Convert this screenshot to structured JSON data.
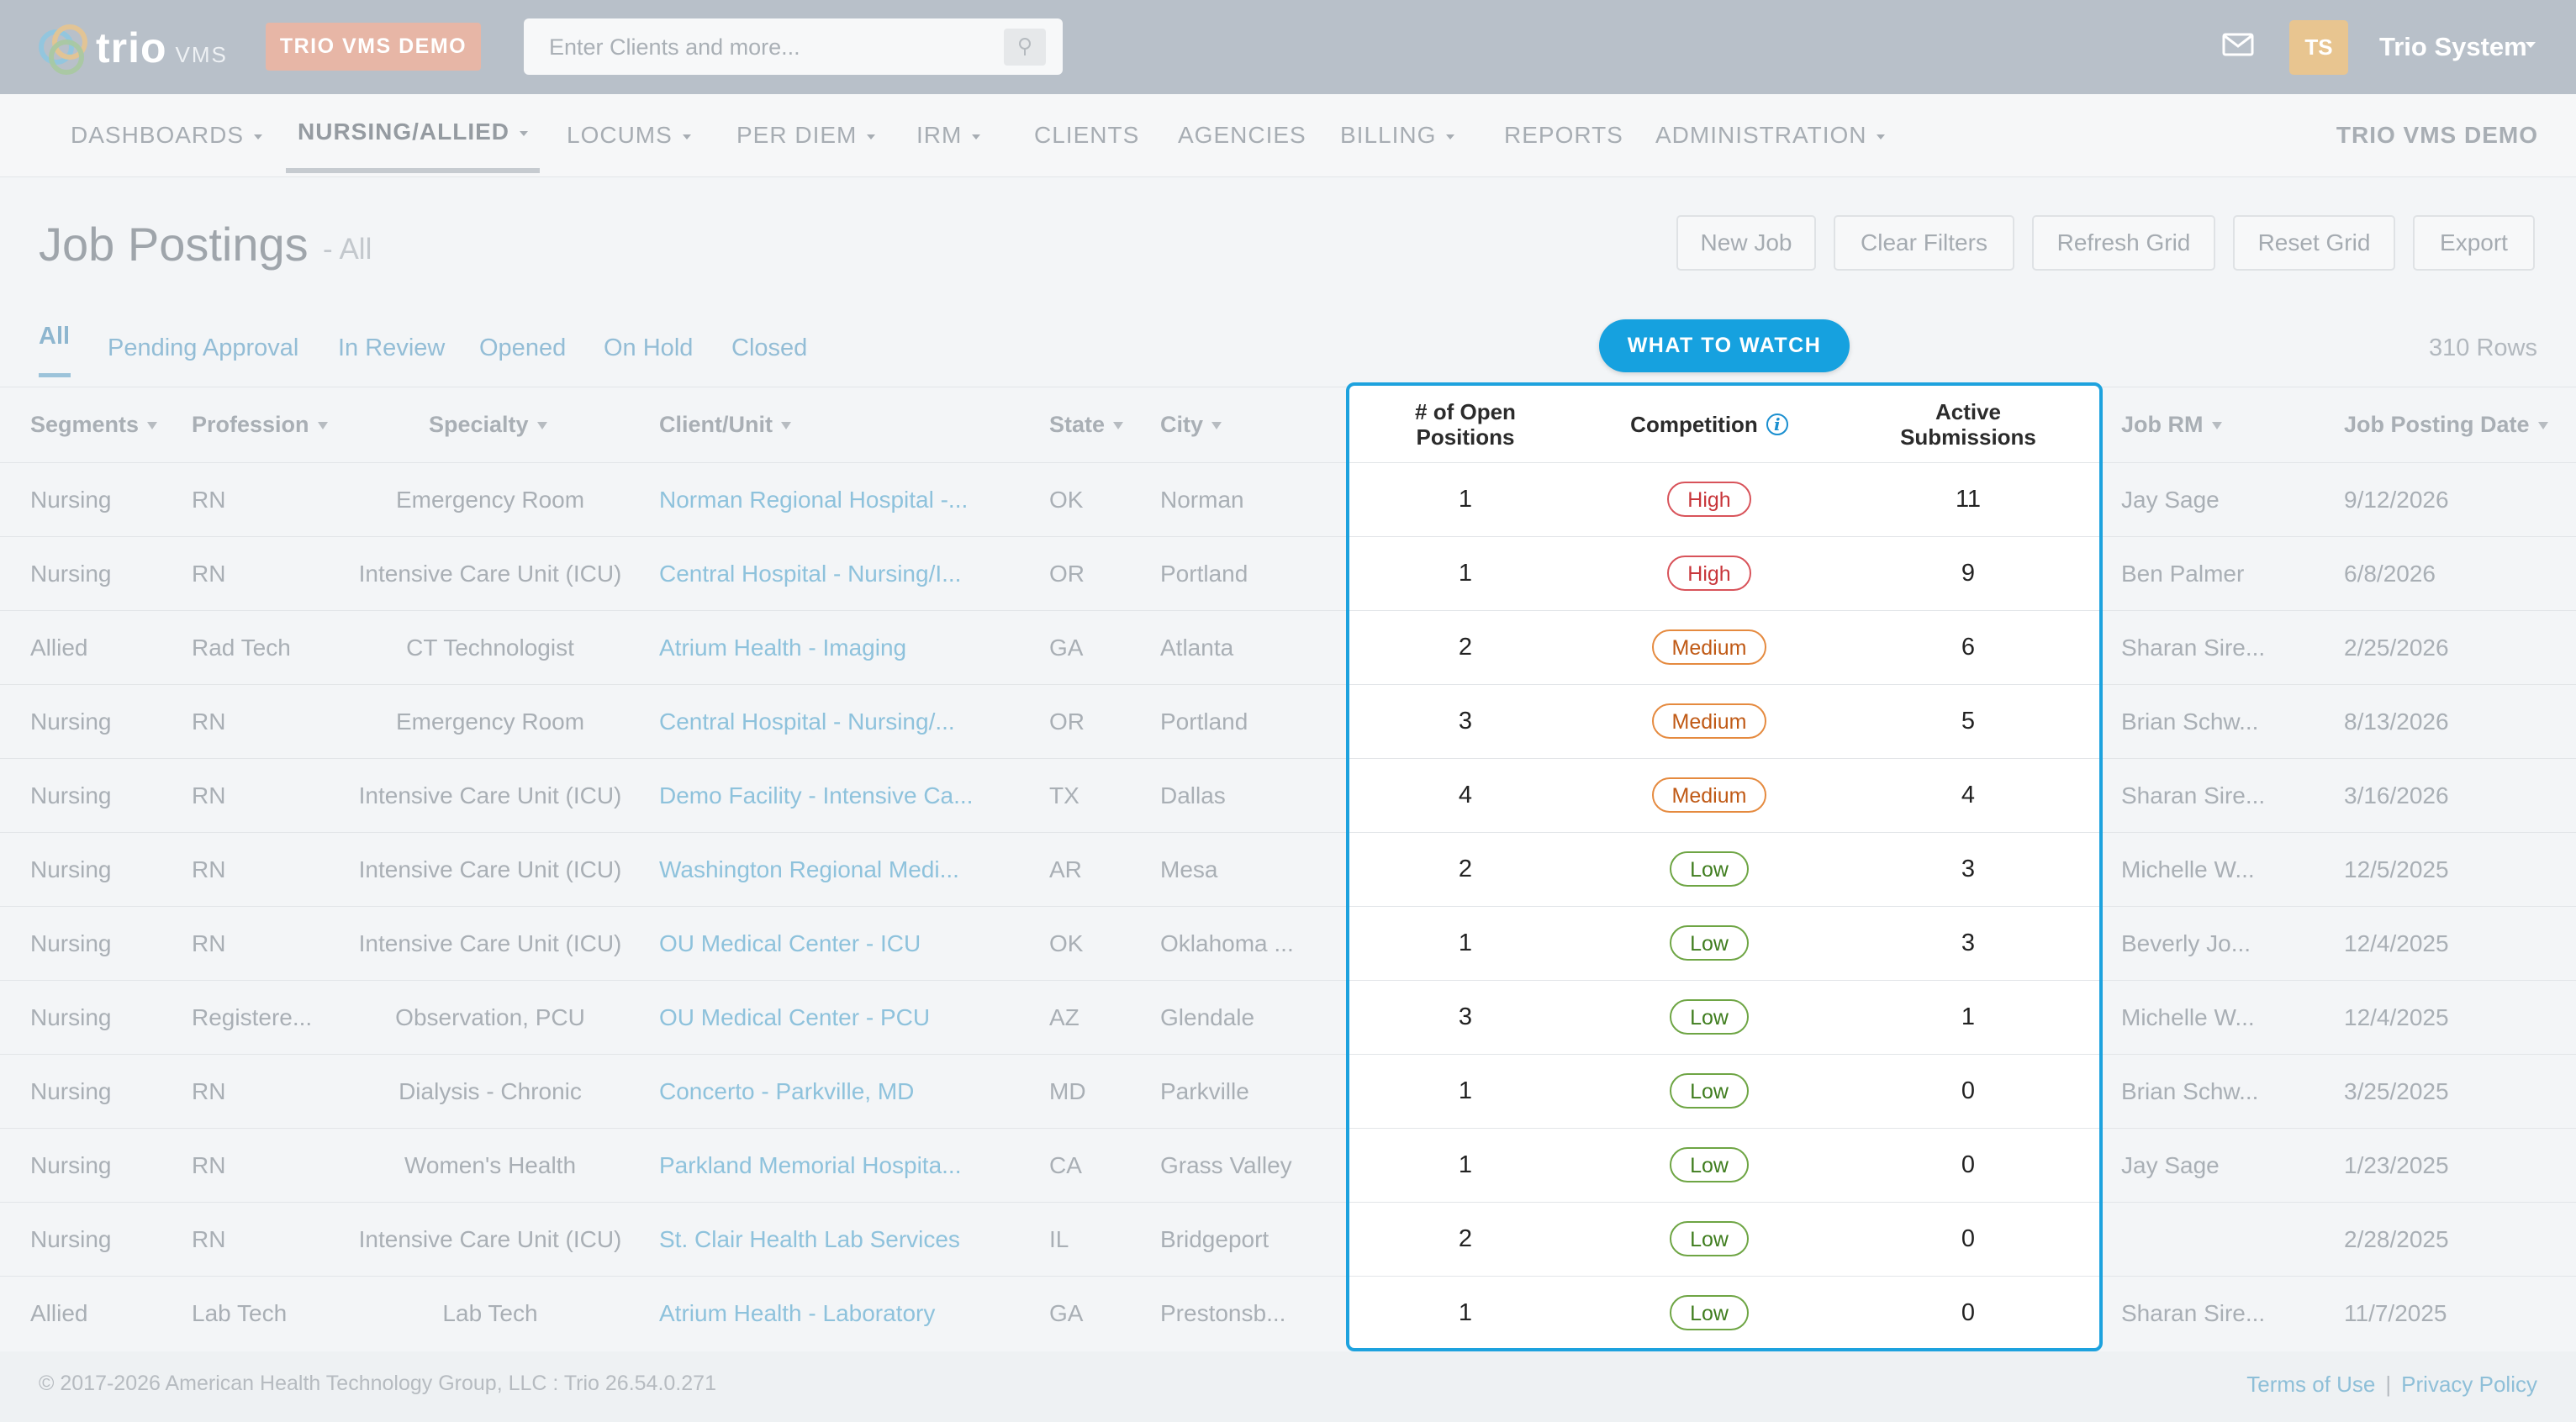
{
  "header": {
    "logo_text": "trio",
    "logo_sub": "VMS",
    "demo_badge": "TRIO VMS DEMO",
    "search_placeholder": "Enter Clients and more...",
    "avatar_initials": "TS",
    "user_name": "Trio System"
  },
  "nav": {
    "items": [
      {
        "label": "DASHBOARDS",
        "caret": true
      },
      {
        "label": "NURSING/ALLIED",
        "caret": true,
        "active": true
      },
      {
        "label": "LOCUMS",
        "caret": true
      },
      {
        "label": "PER DIEM",
        "caret": true
      },
      {
        "label": "IRM",
        "caret": true
      },
      {
        "label": "CLIENTS",
        "caret": false
      },
      {
        "label": "AGENCIES",
        "caret": false
      },
      {
        "label": "BILLING",
        "caret": true
      },
      {
        "label": "REPORTS",
        "caret": false
      },
      {
        "label": "ADMINISTRATION",
        "caret": true
      }
    ],
    "right_label": "TRIO VMS DEMO"
  },
  "page": {
    "title": "Job Postings",
    "subtitle": "- All",
    "buttons": [
      "New Job",
      "Clear Filters",
      "Refresh Grid",
      "Reset Grid",
      "Export"
    ]
  },
  "tabs": [
    "All",
    "Pending Approval",
    "In Review",
    "Opened",
    "On Hold",
    "Closed"
  ],
  "what_to_watch": "WHAT TO WATCH",
  "row_count": "310 Rows",
  "columns": {
    "segments": "Segments",
    "profession": "Profession",
    "specialty": "Specialty",
    "client_unit": "Client/Unit",
    "state": "State",
    "city": "City",
    "open_positions": [
      "# of Open",
      "Positions"
    ],
    "competition": "Competition",
    "active_submissions": [
      "Active",
      "Submissions"
    ],
    "job_rm": "Job RM",
    "job_posting_date": "Job Posting Date"
  },
  "rows": [
    {
      "segment": "Nursing",
      "profession": "RN",
      "specialty": "Emergency Room",
      "client": "Norman Regional Hospital -...",
      "state": "OK",
      "city": "Norman",
      "open": "1",
      "competition": "High",
      "submissions": "11",
      "rm": "Jay Sage",
      "date": "9/12/2026"
    },
    {
      "segment": "Nursing",
      "profession": "RN",
      "specialty": "Intensive Care Unit (ICU)",
      "client": "Central Hospital - Nursing/I...",
      "state": "OR",
      "city": "Portland",
      "open": "1",
      "competition": "High",
      "submissions": "9",
      "rm": "Ben Palmer",
      "date": "6/8/2026"
    },
    {
      "segment": "Allied",
      "profession": "Rad Tech",
      "specialty": "CT Technologist",
      "client": "Atrium Health - Imaging",
      "state": "GA",
      "city": "Atlanta",
      "open": "2",
      "competition": "Medium",
      "submissions": "6",
      "rm": "Sharan Sire...",
      "date": "2/25/2026"
    },
    {
      "segment": "Nursing",
      "profession": "RN",
      "specialty": "Emergency Room",
      "client": "Central Hospital - Nursing/...",
      "state": "OR",
      "city": "Portland",
      "open": "3",
      "competition": "Medium",
      "submissions": "5",
      "rm": "Brian Schw...",
      "date": "8/13/2026"
    },
    {
      "segment": "Nursing",
      "profession": "RN",
      "specialty": "Intensive Care Unit (ICU)",
      "client": "Demo Facility - Intensive Ca...",
      "state": "TX",
      "city": "Dallas",
      "open": "4",
      "competition": "Medium",
      "submissions": "4",
      "rm": "Sharan Sire...",
      "date": "3/16/2026"
    },
    {
      "segment": "Nursing",
      "profession": "RN",
      "specialty": "Intensive Care Unit (ICU)",
      "client": "Washington Regional Medi...",
      "state": "AR",
      "city": "Mesa",
      "open": "2",
      "competition": "Low",
      "submissions": "3",
      "rm": "Michelle W...",
      "date": "12/5/2025"
    },
    {
      "segment": "Nursing",
      "profession": "RN",
      "specialty": "Intensive Care Unit (ICU)",
      "client": "OU Medical Center - ICU",
      "state": "OK",
      "city": "Oklahoma ...",
      "open": "1",
      "competition": "Low",
      "submissions": "3",
      "rm": "Beverly Jo...",
      "date": "12/4/2025"
    },
    {
      "segment": "Nursing",
      "profession": "Registere...",
      "specialty": "Observation, PCU",
      "client": "OU Medical Center - PCU",
      "state": "AZ",
      "city": "Glendale",
      "open": "3",
      "competition": "Low",
      "submissions": "1",
      "rm": "Michelle W...",
      "date": "12/4/2025"
    },
    {
      "segment": "Nursing",
      "profession": "RN",
      "specialty": "Dialysis - Chronic",
      "client": "Concerto - Parkville, MD",
      "state": "MD",
      "city": "Parkville",
      "open": "1",
      "competition": "Low",
      "submissions": "0",
      "rm": "Brian Schw...",
      "date": "3/25/2025"
    },
    {
      "segment": "Nursing",
      "profession": "RN",
      "specialty": "Women's Health",
      "client": "Parkland Memorial Hospita...",
      "state": "CA",
      "city": "Grass Valley",
      "open": "1",
      "competition": "Low",
      "submissions": "0",
      "rm": "Jay Sage",
      "date": "1/23/2025"
    },
    {
      "segment": "Nursing",
      "profession": "RN",
      "specialty": "Intensive Care Unit (ICU)",
      "client": "St. Clair Health Lab Services",
      "state": "IL",
      "city": "Bridgeport",
      "open": "2",
      "competition": "Low",
      "submissions": "0",
      "rm": "",
      "date": "2/28/2025"
    },
    {
      "segment": "Allied",
      "profession": "Lab Tech",
      "specialty": "Lab Tech",
      "client": "Atrium Health - Laboratory",
      "state": "GA",
      "city": "Prestonsb...",
      "open": "1",
      "competition": "Low",
      "submissions": "0",
      "rm": "Sharan Sire...",
      "date": "11/7/2025"
    }
  ],
  "footer": {
    "copyright": "© 2017-2026 American Health Technology Group, LLC : Trio 26.54.0.271",
    "terms": "Terms of Use",
    "separator": "|",
    "privacy": "Privacy Policy"
  },
  "colors": {
    "accent": "#16a1df",
    "high": "#c8363b",
    "medium": "#c05a16",
    "low": "#3f7d1e"
  }
}
